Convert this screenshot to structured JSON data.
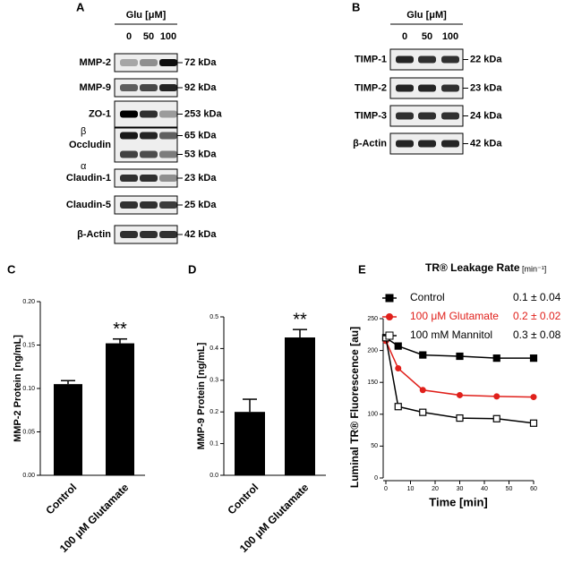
{
  "blots": [
    {
      "panel": "A",
      "header": "Glu [μM]",
      "lanes": [
        "0",
        "50",
        "100"
      ],
      "rows": [
        {
          "name": "MMP-2",
          "sizes": [
            "72 kDa"
          ]
        },
        {
          "name": "MMP-9",
          "sizes": [
            "92 kDa"
          ]
        },
        {
          "name": "ZO-1",
          "sizes": [
            "253 kDa"
          ]
        },
        {
          "name": "Occludin",
          "isoforms": [
            "β",
            "α"
          ],
          "sizes": [
            "65 kDa",
            "53 kDa"
          ]
        },
        {
          "name": "Claudin-1",
          "sizes": [
            "23 kDa"
          ]
        },
        {
          "name": "Claudin-5",
          "sizes": [
            "25 kDa"
          ]
        },
        {
          "name": "β-Actin",
          "sizes": [
            "42 kDa"
          ]
        }
      ]
    },
    {
      "panel": "B",
      "header": "Glu [μM]",
      "lanes": [
        "0",
        "50",
        "100"
      ],
      "rows": [
        {
          "name": "TIMP-1",
          "sizes": [
            "22 kDa"
          ]
        },
        {
          "name": "TIMP-2",
          "sizes": [
            "23 kDa"
          ]
        },
        {
          "name": "TIMP-3",
          "sizes": [
            "24 kDa"
          ]
        },
        {
          "name": "β-Actin",
          "sizes": [
            "42 kDa"
          ]
        }
      ]
    }
  ],
  "chart_data": [
    {
      "type": "bar",
      "panel": "C",
      "y_label": "MMP-2 Protein  [ng/mL]",
      "categories": [
        "Control",
        "100 μM Glutamate"
      ],
      "values": [
        0.105,
        0.152
      ],
      "errors": [
        0.004,
        0.005
      ],
      "color": "#000000",
      "ylim": [
        0,
        0.2
      ],
      "yticks": [
        {
          "value": 0,
          "label": "0.00"
        },
        0.05,
        {
          "value": 0.1,
          "label": "0.10"
        },
        0.15,
        {
          "value": 0.2,
          "label": "0.20"
        }
      ],
      "annotations": [
        {
          "text": "**",
          "category": "100 μM Glutamate"
        }
      ]
    },
    {
      "type": "bar",
      "panel": "D",
      "y_label": "MMP-9 Protein  [ng/mL]",
      "categories": [
        "Control",
        "100 μM Glutamate"
      ],
      "values": [
        0.2,
        0.435
      ],
      "errors": [
        0.04,
        0.025
      ],
      "color": "#000000",
      "ylim": [
        0,
        0.5
      ],
      "yticks": [
        {
          "value": 0,
          "label": "0.0"
        },
        0.1,
        0.2,
        0.3,
        0.4,
        0.5
      ],
      "annotations": [
        {
          "text": "**",
          "category": "100 μM Glutamate"
        }
      ]
    },
    {
      "type": "line",
      "panel": "E",
      "title": "TR® Leakage Rate",
      "title_unit": "[min⁻¹]",
      "x_label": "Time [min]",
      "y_label": "Luminal TR® Fluorescence [au]",
      "xlim": [
        0,
        60
      ],
      "xticks": [
        0,
        10,
        20,
        30,
        40,
        50,
        60
      ],
      "ylim": [
        0,
        250
      ],
      "yticks": [
        0,
        50,
        100,
        150,
        200,
        250
      ],
      "x": [
        0,
        5,
        15,
        30,
        45,
        60
      ],
      "series": [
        {
          "name": "Control",
          "rate": "0.1 ± 0.04",
          "color": "#000000",
          "marker": "square",
          "values": [
            220,
            207,
            193,
            191,
            188,
            188
          ]
        },
        {
          "name": "100 μM Glutamate",
          "rate": "0.2 ± 0.02",
          "color": "#e0201b",
          "marker": "circle",
          "values": [
            215,
            172,
            138,
            130,
            128,
            127
          ]
        },
        {
          "name": "100 mM Mannitol",
          "rate": "0.3 ± 0.08",
          "color": "#000000",
          "marker": "open-square",
          "values": [
            220,
            112,
            103,
            94,
            93,
            86
          ]
        }
      ]
    }
  ]
}
